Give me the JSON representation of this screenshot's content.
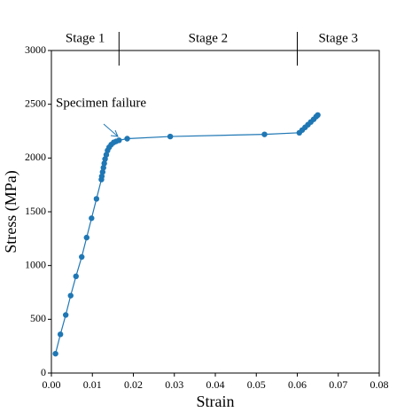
{
  "chart_data": {
    "type": "line",
    "x_label": "Strain",
    "y_label": "Stress (MPa)",
    "xlim": [
      0,
      0.08
    ],
    "xticks": [
      {
        "value": 0,
        "label": "0.00"
      },
      {
        "value": 0.01,
        "label": "0.01"
      },
      {
        "value": 0.02,
        "label": "0.02"
      },
      {
        "value": 0.03,
        "label": "0.03"
      },
      {
        "value": 0.04,
        "label": "0.04"
      },
      {
        "value": 0.05,
        "label": "0.05"
      },
      {
        "value": 0.06,
        "label": "0.06"
      },
      {
        "value": 0.07,
        "label": "0.07"
      },
      {
        "value": 0.08,
        "label": "0.08"
      }
    ],
    "ylim": [
      0,
      3000
    ],
    "yticks": [
      0,
      500,
      1000,
      1500,
      2000,
      2500,
      3000
    ],
    "series": [
      {
        "color": "#1f77b4",
        "x": [
          0.001,
          0.0022,
          0.0035,
          0.0047,
          0.006,
          0.0074,
          0.0086,
          0.0098,
          0.011,
          0.0122,
          0.0123,
          0.0125,
          0.0127,
          0.0129,
          0.0131,
          0.0134,
          0.0137,
          0.0141,
          0.0146,
          0.0152,
          0.0158,
          0.0165,
          0.0185,
          0.029,
          0.052,
          0.0605,
          0.0612,
          0.0619,
          0.0626,
          0.0633,
          0.064,
          0.0646,
          0.065
        ],
        "values": [
          180,
          360,
          540,
          720,
          900,
          1080,
          1260,
          1440,
          1620,
          1800,
          1830,
          1870,
          1910,
          1950,
          1990,
          2030,
          2070,
          2100,
          2125,
          2145,
          2155,
          2165,
          2180,
          2200,
          2220,
          2235,
          2260,
          2285,
          2310,
          2335,
          2360,
          2385,
          2400
        ]
      }
    ],
    "stage_boundaries": [
      0.0165,
      0.06
    ],
    "stages": [
      "Stage 1",
      "Stage 2",
      "Stage 3"
    ],
    "annotation": "Specimen failure"
  }
}
